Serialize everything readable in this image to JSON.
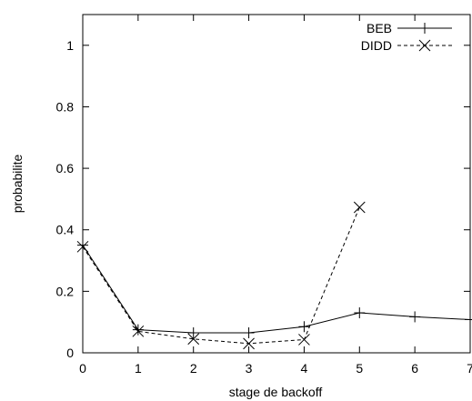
{
  "chart_data": {
    "type": "line",
    "title": "",
    "xlabel": "stage de backoff",
    "ylabel": "probabilite",
    "xlim": [
      0,
      7
    ],
    "ylim": [
      0,
      1.1
    ],
    "x_ticks": [
      0,
      1,
      2,
      3,
      4,
      5,
      6,
      7
    ],
    "x_tick_labels": [
      "0",
      "1",
      "2",
      "3",
      "4",
      "5",
      "6",
      "7"
    ],
    "y_ticks": [
      0,
      0.2,
      0.4,
      0.6,
      0.8,
      1
    ],
    "y_tick_labels": [
      "0",
      "0.2",
      "0.4",
      "0.6",
      "0.8",
      "1"
    ],
    "grid": false,
    "legend_position": "top-right",
    "series": [
      {
        "name": "BEB",
        "line_style": "solid",
        "marker": "plus",
        "color": "#000000",
        "x": [
          0,
          1,
          2,
          3,
          4,
          5,
          6,
          7
        ],
        "values": [
          0.35,
          0.075,
          0.065,
          0.065,
          0.085,
          0.13,
          0.117,
          0.108
        ]
      },
      {
        "name": "DIDD",
        "line_style": "dashed",
        "marker": "x",
        "color": "#000000",
        "x": [
          0,
          1,
          2,
          3,
          4,
          5
        ],
        "values": [
          0.345,
          0.07,
          0.045,
          0.03,
          0.043,
          0.473
        ]
      }
    ]
  }
}
